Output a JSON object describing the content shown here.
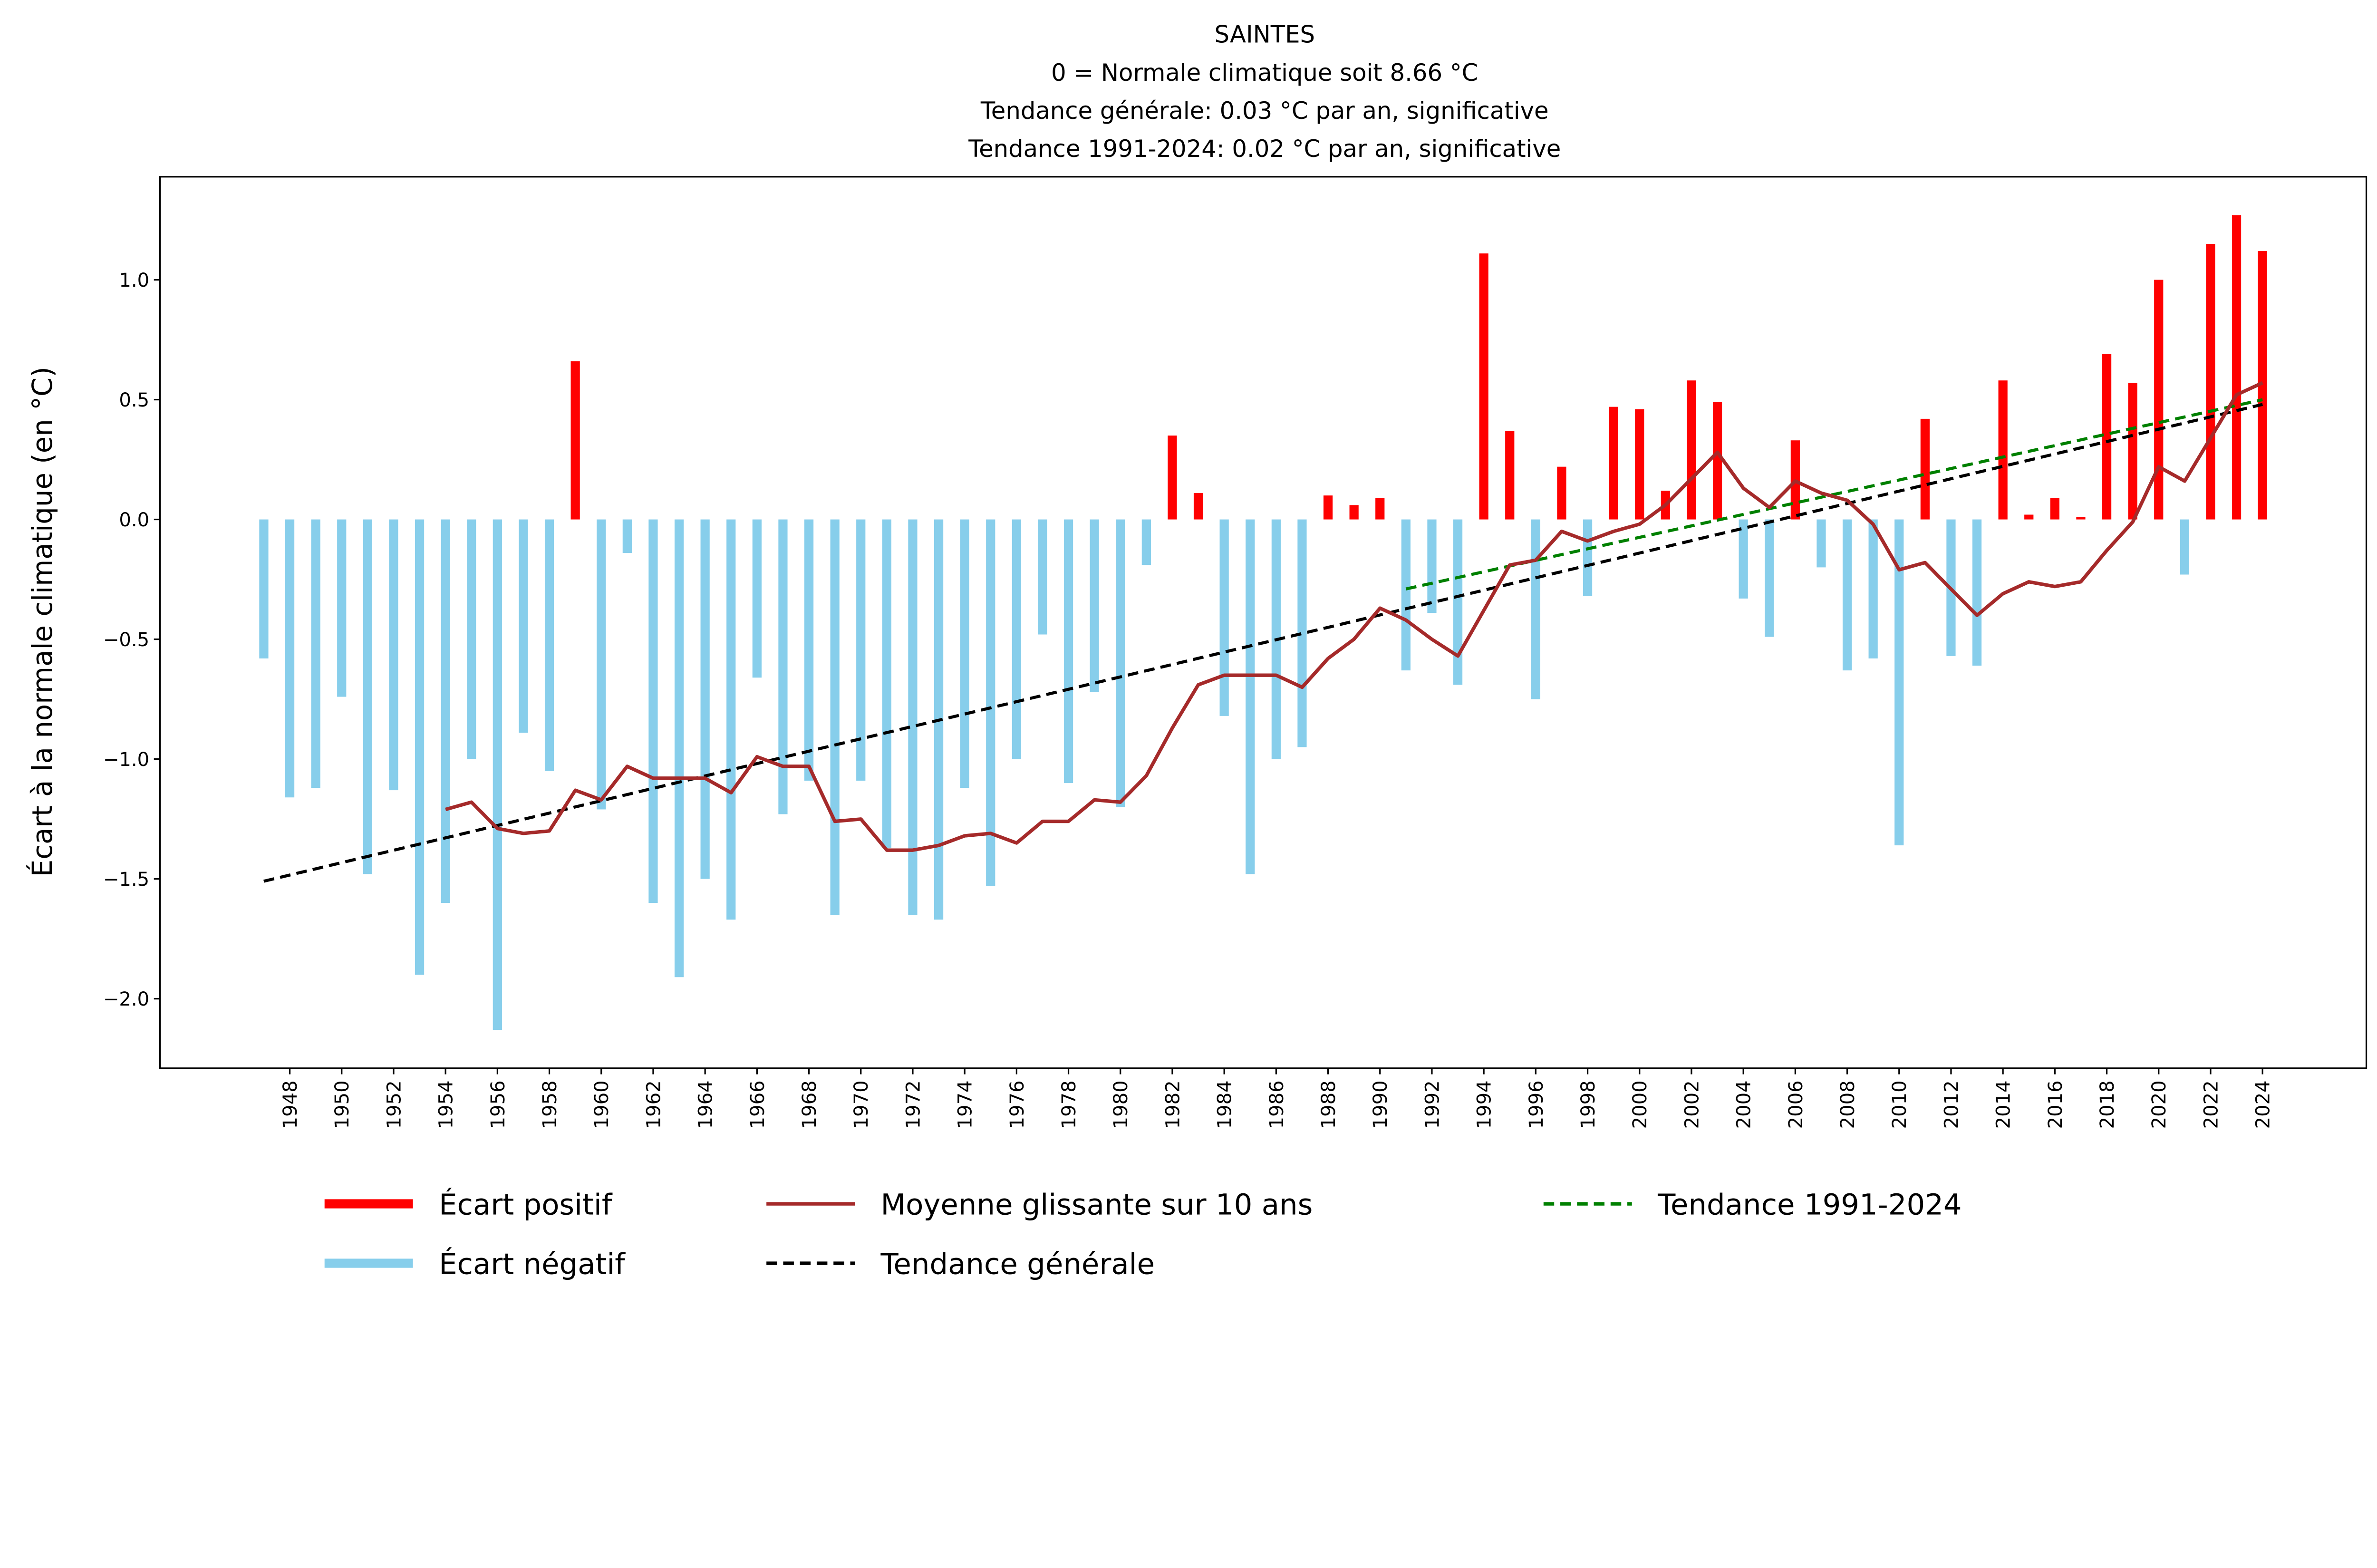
{
  "chart_data": {
    "type": "bar",
    "title": [
      "SAINTES",
      "0 = Normale climatique soit 8.66 °C",
      "Tendance générale: 0.03 °C par an, significative",
      "Tendance 1991-2024: 0.02 °C par an, significative"
    ],
    "xlabel": "",
    "ylabel": "Écart à la normale climatique (en °C)",
    "xlim": [
      1943,
      2028
    ],
    "ylim": [
      -2.29,
      1.43
    ],
    "grid": false,
    "legend_position": "bottom",
    "x_ticks": [
      1948,
      1950,
      1952,
      1954,
      1956,
      1958,
      1960,
      1962,
      1964,
      1966,
      1968,
      1970,
      1972,
      1974,
      1976,
      1978,
      1980,
      1982,
      1984,
      1986,
      1988,
      1990,
      1992,
      1994,
      1996,
      1998,
      2000,
      2002,
      2004,
      2006,
      2008,
      2010,
      2012,
      2014,
      2016,
      2018,
      2020,
      2022,
      2024
    ],
    "y_ticks": [
      "1.0",
      "0.5",
      "0.0",
      "−0.5",
      "−1.0",
      "−1.5",
      "−2.0"
    ],
    "y_tick_values": [
      1.0,
      0.5,
      0.0,
      -0.5,
      -1.0,
      -1.5,
      -2.0
    ],
    "years": [
      1947,
      1948,
      1949,
      1950,
      1951,
      1952,
      1953,
      1954,
      1955,
      1956,
      1957,
      1958,
      1959,
      1960,
      1961,
      1962,
      1963,
      1964,
      1965,
      1966,
      1967,
      1968,
      1969,
      1970,
      1971,
      1972,
      1973,
      1974,
      1975,
      1976,
      1977,
      1978,
      1979,
      1980,
      1981,
      1982,
      1983,
      1984,
      1985,
      1986,
      1987,
      1988,
      1989,
      1990,
      1991,
      1992,
      1993,
      1994,
      1995,
      1996,
      1997,
      1998,
      1999,
      2000,
      2001,
      2002,
      2003,
      2004,
      2005,
      2006,
      2007,
      2008,
      2009,
      2010,
      2011,
      2012,
      2013,
      2014,
      2015,
      2016,
      2017,
      2018,
      2019,
      2020,
      2021,
      2022,
      2023,
      2024
    ],
    "anomalies": [
      -0.58,
      -1.16,
      -1.12,
      -0.74,
      -1.48,
      -1.13,
      -1.9,
      -1.6,
      -1.0,
      -2.13,
      -0.89,
      -1.05,
      0.66,
      -1.21,
      -0.14,
      -1.6,
      -1.91,
      -1.5,
      -1.67,
      -0.66,
      -1.23,
      -1.09,
      -1.65,
      -1.09,
      -1.37,
      -1.65,
      -1.67,
      -1.12,
      -1.53,
      -1.0,
      -0.48,
      -1.1,
      -0.72,
      -1.2,
      -0.19,
      0.35,
      0.11,
      -0.82,
      -1.48,
      -1.0,
      -0.95,
      0.1,
      0.06,
      0.09,
      -0.63,
      -0.39,
      -0.69,
      1.11,
      0.37,
      -0.75,
      0.22,
      -0.32,
      0.47,
      0.46,
      0.12,
      0.58,
      0.49,
      -0.33,
      -0.49,
      0.33,
      -0.2,
      -0.63,
      -0.58,
      -1.36,
      0.42,
      -0.57,
      -0.61,
      0.58,
      0.02,
      0.09,
      0.01,
      0.69,
      0.57,
      1.0,
      -0.23,
      1.15,
      1.27,
      1.12
    ],
    "moving_average": {
      "name": "Moyenne glissante sur 10 ans",
      "color": "#a52a2a",
      "years": [
        1954,
        1955,
        1956,
        1957,
        1958,
        1959,
        1960,
        1961,
        1962,
        1963,
        1964,
        1965,
        1966,
        1967,
        1968,
        1969,
        1970,
        1971,
        1972,
        1973,
        1974,
        1975,
        1976,
        1977,
        1978,
        1979,
        1980,
        1981,
        1982,
        1983,
        1984,
        1985,
        1986,
        1987,
        1988,
        1989,
        1990,
        1991,
        1992,
        1993,
        1994,
        1995,
        1996,
        1997,
        1998,
        1999,
        2000,
        2001,
        2002,
        2003,
        2004,
        2005,
        2006,
        2007,
        2008,
        2009,
        2010,
        2011,
        2012,
        2013,
        2014,
        2015,
        2016,
        2017,
        2018,
        2019,
        2020,
        2021,
        2022,
        2023,
        2024
      ],
      "values": [
        -1.21,
        -1.18,
        -1.29,
        -1.31,
        -1.3,
        -1.13,
        -1.17,
        -1.03,
        -1.08,
        -1.08,
        -1.08,
        -1.14,
        -0.99,
        -1.03,
        -1.03,
        -1.26,
        -1.25,
        -1.38,
        -1.38,
        -1.36,
        -1.32,
        -1.31,
        -1.35,
        -1.26,
        -1.26,
        -1.17,
        -1.18,
        -1.07,
        -0.87,
        -0.69,
        -0.65,
        -0.65,
        -0.65,
        -0.7,
        -0.58,
        -0.5,
        -0.37,
        -0.42,
        -0.5,
        -0.57,
        -0.38,
        -0.19,
        -0.17,
        -0.05,
        -0.09,
        -0.05,
        -0.02,
        0.06,
        0.17,
        0.28,
        0.13,
        0.05,
        0.16,
        0.11,
        0.08,
        -0.02,
        -0.21,
        -0.18,
        -0.29,
        -0.4,
        -0.31,
        -0.26,
        -0.28,
        -0.26,
        -0.13,
        -0.01,
        0.22,
        0.16,
        0.34,
        0.52,
        0.57
      ]
    },
    "trend_general": {
      "name": "Tendance générale",
      "color": "#000000",
      "x": [
        1947,
        2024
      ],
      "y": [
        -1.51,
        0.48
      ]
    },
    "trend_recent": {
      "name": "Tendance 1991-2024",
      "color": "#008000",
      "x": [
        1991,
        2024
      ],
      "y": [
        -0.29,
        0.5
      ]
    },
    "positive_series": {
      "name": "Écart positif",
      "color": "#ff0000"
    },
    "negative_series": {
      "name": "Écart négatif",
      "color": "#87ceeb"
    }
  }
}
